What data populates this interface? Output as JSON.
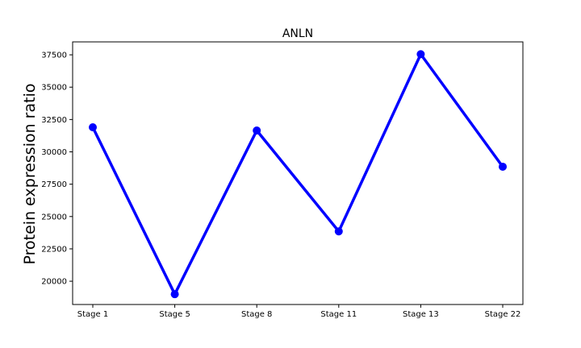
{
  "chart_data": {
    "type": "line",
    "title": "ANLN",
    "xlabel": "",
    "ylabel": "Protein expression ratio",
    "categories": [
      "Stage 1",
      "Stage 5",
      "Stage 8",
      "Stage 11",
      "Stage 13",
      "Stage 22"
    ],
    "series": [
      {
        "values": [
          31900,
          19000,
          31650,
          23850,
          37550,
          28850
        ],
        "color": "#0000ff"
      }
    ],
    "ylim": [
      18200,
      38500
    ],
    "yticks": [
      20000,
      22500,
      25000,
      27500,
      30000,
      32500,
      35000,
      37500
    ],
    "ytick_labels": [
      "20000",
      "22500",
      "25000",
      "27500",
      "30000",
      "32500",
      "35000",
      "37500"
    ],
    "grid": false,
    "legend": "none"
  }
}
